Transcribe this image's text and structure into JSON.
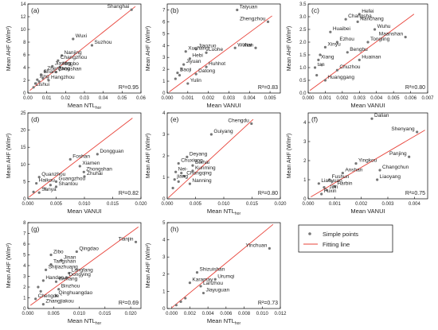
{
  "legend": {
    "points_label": "Simple points",
    "line_label": "Fitting line"
  },
  "colors": {
    "fit": "#e8433a",
    "point": "#777777",
    "label": "#222222",
    "axis": "#000000"
  },
  "chart_data": [
    {
      "panel": "(a)",
      "type": "scatter",
      "xlabel": "Mean NTL",
      "xlabel_sub": "hor",
      "ylabel": "Mean AHF (W/m²)",
      "xlim": [
        0,
        0.06
      ],
      "ylim": [
        0,
        14
      ],
      "xticks": [
        "0.00",
        "0.01",
        "0.02",
        "0.03",
        "0.04",
        "0.05",
        "0.06"
      ],
      "xtick_values": [
        0,
        0.01,
        0.02,
        0.03,
        0.04,
        0.05,
        0.06
      ],
      "yticks": [
        "0",
        "2",
        "4",
        "6",
        "8",
        "10",
        "12",
        "14"
      ],
      "ytick_values": [
        0,
        2,
        4,
        6,
        8,
        10,
        12,
        14
      ],
      "r2": "R²=0.95",
      "fit": [
        [
          0.001,
          0.4
        ],
        [
          0.057,
          13.6
        ]
      ],
      "points": [
        {
          "label": "Shanghai",
          "x": 0.055,
          "y": 13.1
        },
        {
          "label": "Wuxi",
          "x": 0.024,
          "y": 8.5
        },
        {
          "label": "Suzhou",
          "x": 0.034,
          "y": 7.5
        },
        {
          "label": "Nanjing",
          "x": 0.018,
          "y": 5.9
        },
        {
          "label": "Changzhou",
          "x": 0.016,
          "y": 5.1
        },
        {
          "label": "Jiaxing",
          "x": 0.013,
          "y": 4.2
        },
        {
          "label": "Ningbo",
          "x": 0.017,
          "y": 4.1
        },
        {
          "label": "Zhenjiang",
          "x": 0.009,
          "y": 3.4
        },
        {
          "label": "Zhoushan",
          "x": 0.015,
          "y": 3.3
        },
        {
          "label": "Shan-",
          "x": 0.007,
          "y": 2.9
        },
        {
          "label": "xing",
          "x": 0.005,
          "y": 2.1
        },
        {
          "label": "Hangzhou",
          "x": 0.011,
          "y": 2.0
        },
        {
          "label": "Lishui",
          "x": 0.003,
          "y": 0.9
        },
        {
          "label": "",
          "x": 0.004,
          "y": 1.5
        },
        {
          "label": "",
          "x": 0.006,
          "y": 1.8
        },
        {
          "label": "",
          "x": 0.008,
          "y": 2.3
        }
      ]
    },
    {
      "panel": "(b)",
      "type": "scatter",
      "xlabel": "Mean VANUI",
      "xlabel_sub": "",
      "ylabel": "Mean AHF (W/m²)",
      "xlim": [
        0,
        0.0055
      ],
      "ylim": [
        0,
        7.5
      ],
      "xticks": [
        "0.000",
        "0.001",
        "0.002",
        "0.003",
        "0.004",
        "0.005"
      ],
      "xtick_values": [
        0,
        0.001,
        0.002,
        0.003,
        0.004,
        0.005
      ],
      "yticks": [
        "0",
        "1",
        "2",
        "3",
        "4",
        "5",
        "6",
        "7"
      ],
      "ytick_values": [
        0,
        1,
        2,
        3,
        4,
        5,
        6,
        7
      ],
      "r2": "R²=0.83",
      "fit": [
        [
          0.0001,
          0.1
        ],
        [
          0.0051,
          6.5
        ]
      ],
      "points": [
        {
          "label": "Taiyuan",
          "x": 0.0034,
          "y": 7.0
        },
        {
          "label": "Zhengzhou",
          "x": 0.0049,
          "y": 6.0
        },
        {
          "label": "Wuhai",
          "x": 0.0033,
          "y": 3.8
        },
        {
          "label": "Xian",
          "x": 0.0043,
          "y": 3.8
        },
        {
          "label": "Jiaozuo",
          "x": 0.0014,
          "y": 3.7
        },
        {
          "label": "Xuchang",
          "x": 0.0009,
          "y": 3.5
        },
        {
          "label": "Luohe",
          "x": 0.0019,
          "y": 3.4
        },
        {
          "label": "Hebi",
          "x": 0.0011,
          "y": 2.9
        },
        {
          "label": "Jiyuan",
          "x": 0.0008,
          "y": 2.4
        },
        {
          "label": "Huhhot",
          "x": 0.0019,
          "y": 2.2
        },
        {
          "label": "Baoji",
          "x": 0.0005,
          "y": 1.7
        },
        {
          "label": "Datong",
          "x": 0.0014,
          "y": 1.6
        },
        {
          "label": "Yulin",
          "x": 0.001,
          "y": 0.8
        },
        {
          "label": "",
          "x": 0.0004,
          "y": 1.2
        },
        {
          "label": "",
          "x": 0.0006,
          "y": 1.5
        },
        {
          "label": "",
          "x": 0.0007,
          "y": 2.0
        }
      ]
    },
    {
      "panel": "(c)",
      "type": "scatter",
      "xlabel": "Mean VANUI",
      "xlabel_sub": "",
      "ylabel": "Mean AHF (W/m²)",
      "xlim": [
        0,
        0.007
      ],
      "ylim": [
        0,
        3.5
      ],
      "xticks": [
        "0.000",
        "0.001",
        "0.002",
        "0.003",
        "0.004",
        "0.005",
        "0.006",
        "0.007"
      ],
      "xtick_values": [
        0,
        0.001,
        0.002,
        0.003,
        0.004,
        0.005,
        0.006,
        0.007
      ],
      "yticks": [
        "0.0",
        "0.5",
        "1.0",
        "1.5",
        "2.0",
        "2.5",
        "3.0",
        "3.5"
      ],
      "ytick_values": [
        0,
        0.5,
        1.0,
        1.5,
        2.0,
        2.5,
        3.0,
        3.5
      ],
      "r2": "R²=0.80",
      "fit": [
        [
          0.0001,
          0.1
        ],
        [
          0.0062,
          3.1
        ]
      ],
      "points": [
        {
          "label": "Hefei",
          "x": 0.003,
          "y": 3.1
        },
        {
          "label": "Changsha",
          "x": 0.0022,
          "y": 2.9
        },
        {
          "label": "Nanchang",
          "x": 0.0029,
          "y": 2.8
        },
        {
          "label": "Wuhu",
          "x": 0.0039,
          "y": 2.5
        },
        {
          "label": "Maanshan",
          "x": 0.0057,
          "y": 2.2
        },
        {
          "label": "Huaibei",
          "x": 0.0013,
          "y": 2.4
        },
        {
          "label": "Tongling",
          "x": 0.0035,
          "y": 2.0
        },
        {
          "label": "Ezhou",
          "x": 0.0017,
          "y": 2.0
        },
        {
          "label": "Xinyu",
          "x": 0.001,
          "y": 1.8
        },
        {
          "label": "Bengbu",
          "x": 0.0023,
          "y": 1.6
        },
        {
          "label": "Xiang",
          "x": 0.0006,
          "y": 1.3
        },
        {
          "label": "Huainan",
          "x": 0.003,
          "y": 1.3
        },
        {
          "label": "tan",
          "x": 0.0004,
          "y": 1.0
        },
        {
          "label": "Chuzhou",
          "x": 0.0017,
          "y": 0.9
        },
        {
          "label": "Huanggang",
          "x": 0.001,
          "y": 0.5
        },
        {
          "label": "",
          "x": 0.0005,
          "y": 0.7
        },
        {
          "label": "",
          "x": 0.0008,
          "y": 1.1
        },
        {
          "label": "",
          "x": 0.0007,
          "y": 1.5
        }
      ]
    },
    {
      "panel": "(d)",
      "type": "scatter",
      "xlabel": "Mean VANUI",
      "xlabel_sub": "",
      "ylabel": "Mean AHF (W/m²)",
      "xlim": [
        0,
        0.02
      ],
      "ylim": [
        0,
        25
      ],
      "xticks": [
        "0.000",
        "0.005",
        "0.010",
        "0.015",
        "0.020"
      ],
      "xtick_values": [
        0,
        0.005,
        0.01,
        0.015,
        0.02
      ],
      "yticks": [
        "0",
        "5",
        "10",
        "15",
        "20",
        "25"
      ],
      "ytick_values": [
        0,
        5,
        10,
        15,
        20,
        25
      ],
      "r2": "R²=0.82",
      "fit": [
        [
          0.0002,
          0.5
        ],
        [
          0.0185,
          23.5
        ]
      ],
      "points": [
        {
          "label": "Dongguan",
          "x": 0.0123,
          "y": 13.0
        },
        {
          "label": "Foshan",
          "x": 0.0075,
          "y": 11.5
        },
        {
          "label": "Xiamen",
          "x": 0.0092,
          "y": 9.5
        },
        {
          "label": "Zhongshan",
          "x": 0.0099,
          "y": 7.8
        },
        {
          "label": "Zhuhai",
          "x": 0.01,
          "y": 6.5
        },
        {
          "label": "Quanzhou",
          "x": 0.002,
          "y": 6.3
        },
        {
          "label": "Guangzhou",
          "x": 0.005,
          "y": 5.0
        },
        {
          "label": "Haikou",
          "x": 0.0015,
          "y": 4.5
        },
        {
          "label": "Shantou",
          "x": 0.005,
          "y": 3.5
        },
        {
          "label": "Sanya",
          "x": 0.002,
          "y": 1.8
        },
        {
          "label": "",
          "x": 0.001,
          "y": 2.0
        },
        {
          "label": "",
          "x": 0.003,
          "y": 3.0
        },
        {
          "label": "",
          "x": 0.004,
          "y": 4.0
        }
      ]
    },
    {
      "panel": "(e)",
      "type": "scatter",
      "xlabel": "Mean NTL",
      "xlabel_sub": "hor",
      "ylabel": "Mean AHF (W/m²)",
      "xlim": [
        0,
        0.02
      ],
      "ylim": [
        0,
        4
      ],
      "xticks": [
        "0.000",
        "0.005",
        "0.010",
        "0.015",
        "0.020"
      ],
      "xtick_values": [
        0,
        0.005,
        0.01,
        0.015,
        0.02
      ],
      "yticks": [
        "0",
        "1",
        "2",
        "3",
        "4"
      ],
      "ytick_values": [
        0,
        1,
        2,
        3,
        4
      ],
      "r2": "R²=0.80",
      "fit": [
        [
          0.0002,
          0.05
        ],
        [
          0.0152,
          3.7
        ]
      ],
      "points": [
        {
          "label": "Chengdu",
          "x": 0.0149,
          "y": 3.5
        },
        {
          "label": "Guiyang",
          "x": 0.0078,
          "y": 3.0
        },
        {
          "label": "Deyang",
          "x": 0.0035,
          "y": 1.95
        },
        {
          "label": "Chuxiong",
          "x": 0.002,
          "y": 1.65
        },
        {
          "label": "Beihai",
          "x": 0.0045,
          "y": 1.55
        },
        {
          "label": "Kunming",
          "x": 0.0045,
          "y": 1.3
        },
        {
          "label": "Nei-",
          "x": 0.0015,
          "y": 1.25
        },
        {
          "label": "Chongqing",
          "x": 0.003,
          "y": 1.05
        },
        {
          "label": "jiang",
          "x": 0.0013,
          "y": 0.9
        },
        {
          "label": "Nanning",
          "x": 0.004,
          "y": 0.7
        },
        {
          "label": "",
          "x": 0.001,
          "y": 0.5
        },
        {
          "label": "",
          "x": 0.002,
          "y": 0.8
        },
        {
          "label": "",
          "x": 0.0025,
          "y": 1.2
        }
      ]
    },
    {
      "panel": "(f)",
      "type": "scatter",
      "xlabel": "Mean VANUI",
      "xlabel_sub": "",
      "ylabel": "Mean AHF (W/m²)",
      "xlim": [
        0,
        0.0045
      ],
      "ylim": [
        0,
        4.5
      ],
      "xticks": [
        "0.000",
        "0.001",
        "0.002",
        "0.003",
        "0.004"
      ],
      "xtick_values": [
        0,
        0.001,
        0.002,
        0.003,
        0.004
      ],
      "yticks": [
        "0",
        "1",
        "2",
        "3",
        "4"
      ],
      "ytick_values": [
        0,
        1,
        2,
        3,
        4
      ],
      "r2": "R²=0.75",
      "fit": [
        [
          0.0001,
          0.1
        ],
        [
          0.0044,
          3.6
        ]
      ],
      "points": [
        {
          "label": "Dalian",
          "x": 0.0024,
          "y": 4.2
        },
        {
          "label": "Shenyang",
          "x": 0.0041,
          "y": 3.5
        },
        {
          "label": "Panjing",
          "x": 0.0038,
          "y": 2.2
        },
        {
          "label": "Yingkou",
          "x": 0.0018,
          "y": 1.85
        },
        {
          "label": "Anshan",
          "x": 0.0013,
          "y": 1.35
        },
        {
          "label": "Changchun",
          "x": 0.0027,
          "y": 1.5
        },
        {
          "label": "Fushun",
          "x": 0.0008,
          "y": 1.0
        },
        {
          "label": "Liaoyang",
          "x": 0.0026,
          "y": 1.0
        },
        {
          "label": "Liaoyuan",
          "x": 0.0004,
          "y": 0.8
        },
        {
          "label": "Harbin",
          "x": 0.001,
          "y": 0.65
        },
        {
          "label": "Jilin",
          "x": 0.0007,
          "y": 0.45
        },
        {
          "label": "Fuxin",
          "x": 0.0005,
          "y": 0.25
        },
        {
          "label": "",
          "x": 0.0006,
          "y": 0.6
        },
        {
          "label": "",
          "x": 0.0009,
          "y": 0.9
        }
      ]
    },
    {
      "panel": "(g)",
      "type": "scatter",
      "xlabel": "Mean NTL",
      "xlabel_sub": "hor",
      "ylabel": "Mean AHF (W/m²)",
      "xlim": [
        0,
        0.022
      ],
      "ylim": [
        0,
        8
      ],
      "xticks": [
        "0.000",
        "0.005",
        "0.010",
        "0.015",
        "0.020"
      ],
      "xtick_values": [
        0,
        0.005,
        0.01,
        0.015,
        0.02
      ],
      "yticks": [
        "0",
        "1",
        "2",
        "3",
        "4",
        "5",
        "6",
        "7",
        "8"
      ],
      "ytick_values": [
        0,
        1,
        2,
        3,
        4,
        5,
        6,
        7,
        8
      ],
      "r2": "R²=0.69",
      "fit": [
        [
          0.0005,
          0.3
        ],
        [
          0.0215,
          7.6
        ]
      ],
      "points": [
        {
          "label": "Tianjin",
          "x": 0.021,
          "y": 6.2
        },
        {
          "label": "Qingdao",
          "x": 0.0095,
          "y": 5.3
        },
        {
          "label": "Zibo",
          "x": 0.0045,
          "y": 5.0
        },
        {
          "label": "Jinan",
          "x": 0.0065,
          "y": 4.5
        },
        {
          "label": "Tangshan",
          "x": 0.0045,
          "y": 4.1
        },
        {
          "label": "Shijiazhuang",
          "x": 0.0035,
          "y": 3.6
        },
        {
          "label": "Langfang",
          "x": 0.008,
          "y": 3.3
        },
        {
          "label": "Dongying",
          "x": 0.0075,
          "y": 2.9
        },
        {
          "label": "Handan",
          "x": 0.003,
          "y": 2.6
        },
        {
          "label": "Weifang",
          "x": 0.0055,
          "y": 2.5
        },
        {
          "label": "Binzhou",
          "x": 0.006,
          "y": 1.8
        },
        {
          "label": "Qinghuangdao",
          "x": 0.0055,
          "y": 1.2
        },
        {
          "label": "Chengde",
          "x": 0.0015,
          "y": 0.9
        },
        {
          "label": "Zhangjiakou",
          "x": 0.003,
          "y": 0.4
        },
        {
          "label": "",
          "x": 0.002,
          "y": 2.0
        },
        {
          "label": "",
          "x": 0.0025,
          "y": 1.6
        }
      ]
    },
    {
      "panel": "(h)",
      "type": "scatter",
      "xlabel": "Mean NTL",
      "xlabel_sub": "hor",
      "ylabel": "Mean AHF (W/m²)",
      "xlim": [
        -0.0005,
        0.012
      ],
      "ylim": [
        0,
        5
      ],
      "xticks": [
        "0.000",
        "0.002",
        "0.004",
        "0.006",
        "0.008",
        "0.010",
        "0.012"
      ],
      "xtick_values": [
        0,
        0.002,
        0.004,
        0.006,
        0.008,
        0.01,
        0.012
      ],
      "yticks": [
        "0",
        "1",
        "2",
        "3",
        "4",
        "5"
      ],
      "ytick_values": [
        0,
        1,
        2,
        3,
        4,
        5
      ],
      "r2": "R²=0.73",
      "fit": [
        [
          0.0,
          0.05
        ],
        [
          0.0112,
          4.9
        ]
      ],
      "points": [
        {
          "label": "Yinchuan",
          "x": 0.0108,
          "y": 3.5
        },
        {
          "label": "Shizuishan",
          "x": 0.0028,
          "y": 2.1
        },
        {
          "label": "Urumqi",
          "x": 0.0048,
          "y": 1.7
        },
        {
          "label": "Karamay",
          "x": 0.002,
          "y": 1.5
        },
        {
          "label": "Lanzhou",
          "x": 0.0032,
          "y": 1.3
        },
        {
          "label": "Jiayuguan",
          "x": 0.0035,
          "y": 0.9
        },
        {
          "label": "",
          "x": 0.0005,
          "y": 0.2
        },
        {
          "label": "",
          "x": 0.001,
          "y": 0.4
        },
        {
          "label": "",
          "x": 0.0015,
          "y": 0.6
        }
      ]
    }
  ]
}
